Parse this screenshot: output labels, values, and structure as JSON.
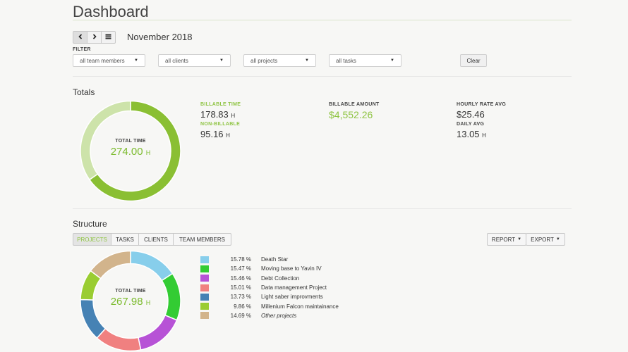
{
  "header": {
    "title": "Dashboard",
    "month": "November 2018",
    "nav": {
      "prev_icon": "chevron-left-icon",
      "next_icon": "chevron-right-icon",
      "calendar_icon": "calendar-icon"
    }
  },
  "filter": {
    "label": "FILTER",
    "selects": [
      {
        "value": "all team members"
      },
      {
        "value": "all clients"
      },
      {
        "value": "all projects"
      },
      {
        "value": "all tasks"
      }
    ],
    "clear_label": "Clear"
  },
  "totals": {
    "title": "Totals",
    "donut": {
      "label": "TOTAL TIME",
      "value": "274.00",
      "unit": "H"
    },
    "billable_time": {
      "label": "BILLABLE TIME",
      "value": "178.83",
      "unit": "H"
    },
    "non_billable": {
      "label": "NON-BILLABLE",
      "value": "95.16",
      "unit": "H"
    },
    "billable_amount": {
      "label": "BILLABLE AMOUNT",
      "value": "$4,552.26"
    },
    "hourly_rate_avg": {
      "label": "HOURLY RATE AVG",
      "value": "$25.46"
    },
    "daily_avg": {
      "label": "DAILY AVG",
      "value": "13.05",
      "unit": "H"
    },
    "colors": {
      "billable": "#8abf33",
      "non_billable": "#cde3aa"
    }
  },
  "structure": {
    "title": "Structure",
    "tabs": [
      {
        "label": "PROJECTS",
        "active": true
      },
      {
        "label": "TASKS",
        "active": false
      },
      {
        "label": "CLIENTS",
        "active": false
      },
      {
        "label": "TEAM MEMBERS",
        "active": false
      }
    ],
    "report_label": "REPORT",
    "export_label": "EXPORT",
    "donut": {
      "label": "TOTAL TIME",
      "value": "267.98",
      "unit": "H"
    },
    "legend": [
      {
        "pct": "15.78 %",
        "name": "Death Star",
        "color": "#87ceeb",
        "italic": false
      },
      {
        "pct": "15.47 %",
        "name": "Moving base to Yavin IV",
        "color": "#33cc33",
        "italic": false
      },
      {
        "pct": "15.46 %",
        "name": "Debt Collection",
        "color": "#b752d6",
        "italic": false
      },
      {
        "pct": "15.01 %",
        "name": "Data management Project",
        "color": "#f08080",
        "italic": false
      },
      {
        "pct": "13.73 %",
        "name": "Light saber improvments",
        "color": "#4682b4",
        "italic": false
      },
      {
        "pct": "9.86 %",
        "name": "Millenium Falcon maintainance",
        "color": "#9acd32",
        "italic": false
      },
      {
        "pct": "14.69 %",
        "name": "Other projects",
        "color": "#d2b48c",
        "italic": true
      }
    ]
  },
  "chart_data": [
    {
      "type": "pie",
      "categories": [
        "BILLABLE TIME",
        "NON-BILLABLE"
      ],
      "values": [
        178.83,
        95.16
      ]
    },
    {
      "type": "pie",
      "categories": [
        "Death Star",
        "Moving base to Yavin IV",
        "Debt Collection",
        "Data management Project",
        "Light saber improvments",
        "Millenium Falcon maintainance",
        "Other projects"
      ],
      "values": [
        15.78,
        15.47,
        15.46,
        15.01,
        13.73,
        9.86,
        14.69
      ]
    }
  ]
}
